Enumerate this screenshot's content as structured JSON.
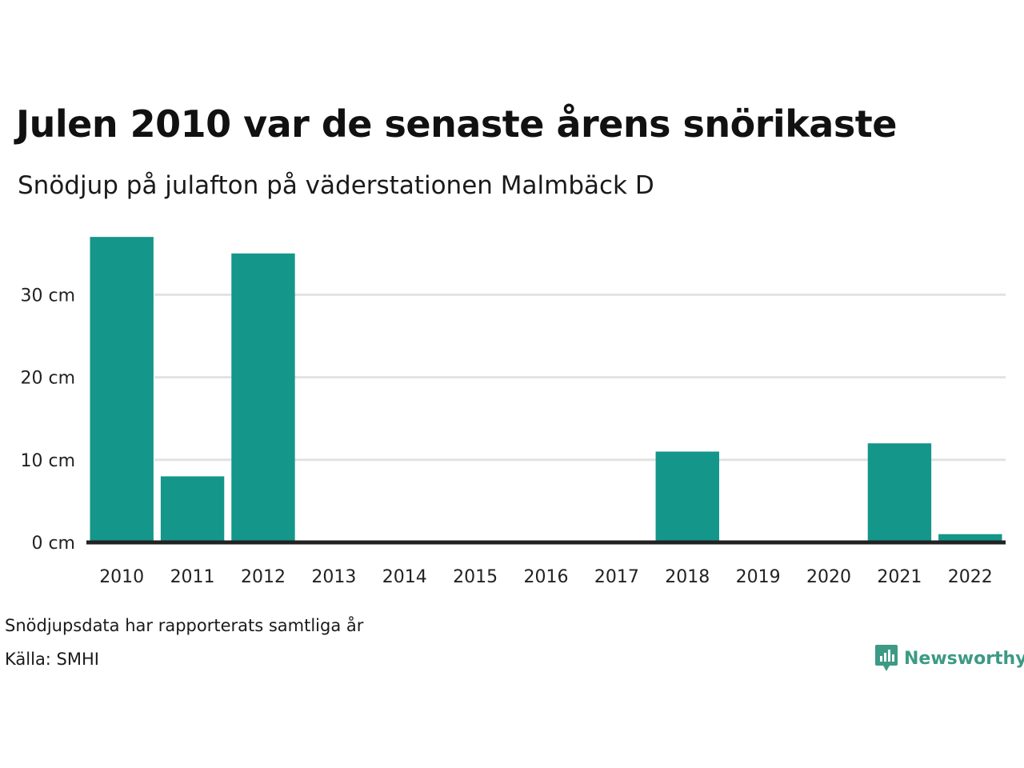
{
  "title": "Julen 2010 var de senaste årens snörikaste",
  "subtitle": "Snödjup på julafton på väderstationen Malmbäck D",
  "footer": {
    "note": "Snödjupsdata har rapporterats samtliga år",
    "source": "Källa: SMHI"
  },
  "logo": {
    "text": "Newsworthy",
    "icon": "bar-chart-speech-bubble-icon",
    "color": "#3c9a85"
  },
  "colors": {
    "bar": "#14968a",
    "grid": "#e2e2e2",
    "baseline": "#222222"
  },
  "chart_data": {
    "type": "bar",
    "categories": [
      "2010",
      "2011",
      "2012",
      "2013",
      "2014",
      "2015",
      "2016",
      "2017",
      "2018",
      "2019",
      "2020",
      "2021",
      "2022"
    ],
    "values": [
      37,
      8,
      35,
      0,
      0,
      0,
      0,
      0,
      11,
      0,
      0,
      12,
      1
    ],
    "unit": "cm",
    "yticks": [
      0,
      10,
      20,
      30
    ],
    "ytick_labels": [
      "0 cm",
      "10 cm",
      "20 cm",
      "30 cm"
    ],
    "ylim": [
      0,
      40
    ],
    "grid": true,
    "legend": "none"
  }
}
